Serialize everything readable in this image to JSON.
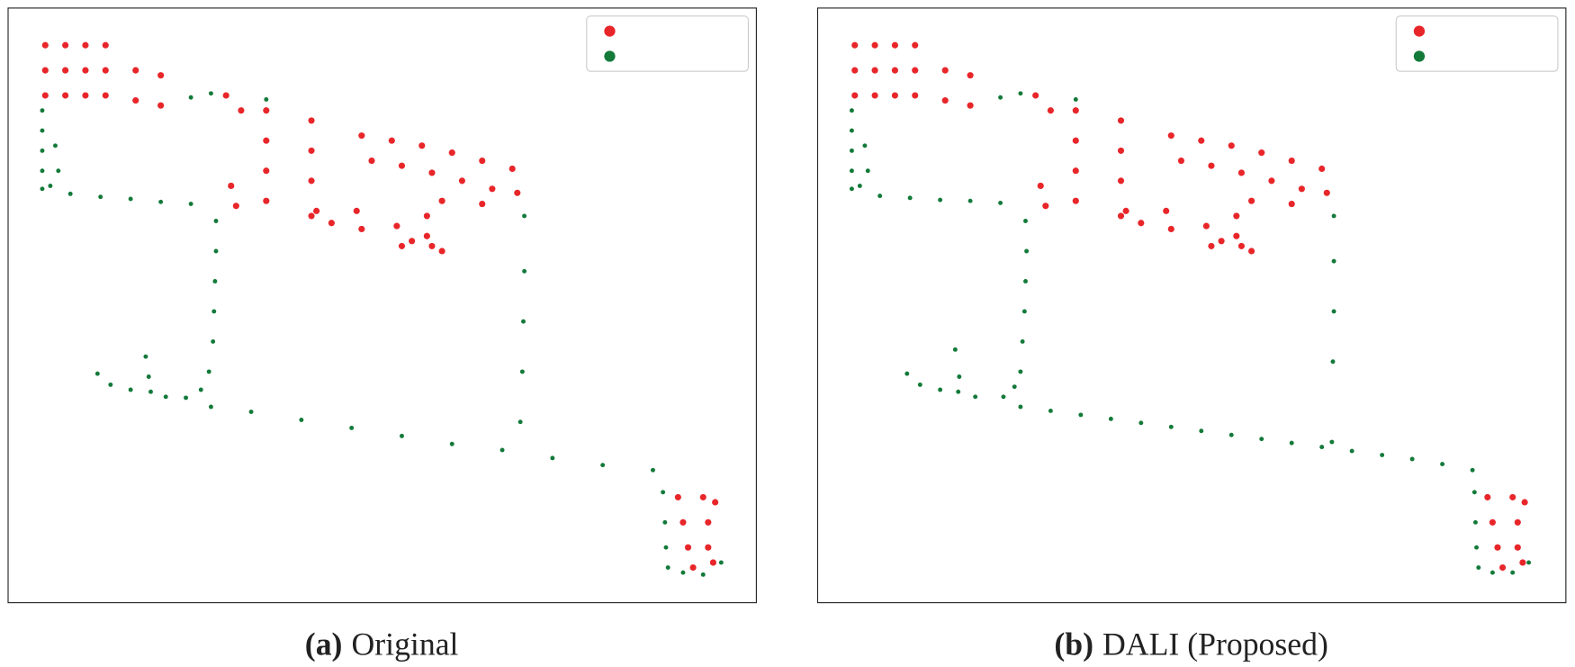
{
  "chart_data": [
    {
      "type": "scatter",
      "label": "(a)",
      "title": "Original",
      "xlim": [
        0,
        745
      ],
      "ylim": [
        0,
        592
      ],
      "legend": "upper right",
      "series": [
        {
          "color": "#e8262a",
          "x": [
            37,
            57,
            77,
            97,
            37,
            57,
            77,
            97,
            37,
            57,
            77,
            97,
            127,
            152,
            127,
            152,
            217,
            232,
            257,
            257,
            257,
            257,
            222,
            227,
            302,
            302,
            302,
            302,
            352,
            382,
            412,
            442,
            472,
            502,
            362,
            392,
            422,
            452,
            482,
            507,
            432,
            472,
            417,
            417,
            307,
            322,
            347,
            352,
            387,
            402,
            422,
            432,
            392,
            667,
            692,
            704,
            672,
            697,
            677,
            697,
            682,
            702
          ],
          "y": [
            555,
            555,
            555,
            555,
            530,
            530,
            530,
            530,
            505,
            505,
            505,
            505,
            530,
            525,
            500,
            495,
            505,
            490,
            490,
            460,
            430,
            400,
            415,
            395,
            480,
            450,
            420,
            385,
            465,
            460,
            455,
            448,
            440,
            432,
            440,
            435,
            428,
            420,
            412,
            408,
            400,
            397,
            385,
            365,
            390,
            378,
            390,
            372,
            375,
            360,
            355,
            350,
            355,
            105,
            105,
            100,
            80,
            80,
            55,
            55,
            35,
            40
          ]
        },
        {
          "color": "#137a3a",
          "x": [
            34,
            34,
            34,
            34,
            34,
            47,
            50,
            42,
            62,
            92,
            122,
            152,
            182,
            207,
            207,
            206,
            205,
            204,
            200,
            192,
            177,
            89,
            102,
            122,
            142,
            157,
            137,
            140,
            202,
            242,
            292,
            342,
            392,
            442,
            492,
            542,
            592,
            642,
            514,
            514,
            513,
            512,
            510,
            652,
            654,
            655,
            657,
            672,
            692,
            710,
            182,
            202,
            257
          ],
          "y": [
            490,
            470,
            450,
            430,
            412,
            455,
            430,
            415,
            407,
            404,
            402,
            399,
            397,
            380,
            350,
            320,
            290,
            260,
            230,
            212,
            204,
            228,
            217,
            212,
            210,
            205,
            245,
            225,
            195,
            190,
            182,
            174,
            166,
            158,
            152,
            144,
            137,
            132,
            385,
            330,
            280,
            230,
            180,
            110,
            80,
            55,
            35,
            30,
            28,
            40,
            503,
            507,
            501
          ]
        }
      ]
    },
    {
      "type": "scatter",
      "label": "(b)",
      "title": "DALI (Proposed)",
      "xlim": [
        0,
        745
      ],
      "ylim": [
        0,
        592
      ],
      "legend": "upper right",
      "series": [
        {
          "color": "#e8262a",
          "x": [
            37,
            57,
            77,
            97,
            37,
            57,
            77,
            97,
            37,
            57,
            77,
            97,
            127,
            152,
            127,
            152,
            217,
            232,
            257,
            257,
            257,
            257,
            222,
            227,
            302,
            302,
            302,
            302,
            352,
            382,
            412,
            442,
            472,
            502,
            362,
            392,
            422,
            452,
            482,
            507,
            432,
            472,
            417,
            417,
            307,
            322,
            347,
            352,
            387,
            402,
            422,
            432,
            392,
            667,
            692,
            704,
            672,
            697,
            677,
            697,
            682,
            702
          ],
          "y": [
            555,
            555,
            555,
            555,
            530,
            530,
            530,
            530,
            505,
            505,
            505,
            505,
            530,
            525,
            500,
            495,
            505,
            490,
            490,
            460,
            430,
            400,
            415,
            395,
            480,
            450,
            420,
            385,
            465,
            460,
            455,
            448,
            440,
            432,
            440,
            435,
            428,
            420,
            412,
            408,
            400,
            397,
            385,
            365,
            390,
            378,
            390,
            372,
            375,
            360,
            355,
            350,
            355,
            105,
            105,
            100,
            80,
            80,
            55,
            55,
            35,
            40
          ]
        },
        {
          "color": "#137a3a",
          "x": [
            34,
            34,
            34,
            34,
            34,
            47,
            50,
            42,
            62,
            92,
            122,
            152,
            182,
            207,
            208,
            207,
            206,
            204,
            202,
            196,
            185,
            89,
            102,
            122,
            140,
            157,
            137,
            141,
            202,
            232,
            262,
            292,
            322,
            352,
            382,
            412,
            442,
            472,
            502,
            532,
            562,
            592,
            622,
            652,
            514,
            514,
            514,
            513,
            512,
            654,
            655,
            656,
            658,
            672,
            692,
            708,
            182,
            202,
            257
          ],
          "y": [
            490,
            470,
            450,
            430,
            412,
            455,
            430,
            415,
            405,
            403,
            401,
            400,
            398,
            380,
            350,
            320,
            290,
            260,
            230,
            215,
            205,
            228,
            217,
            212,
            210,
            205,
            252,
            225,
            195,
            191,
            187,
            183,
            179,
            175,
            171,
            167,
            163,
            159,
            155,
            151,
            147,
            143,
            138,
            132,
            385,
            340,
            290,
            240,
            160,
            110,
            80,
            55,
            35,
            30,
            30,
            40,
            503,
            507,
            501
          ]
        }
      ]
    }
  ]
}
